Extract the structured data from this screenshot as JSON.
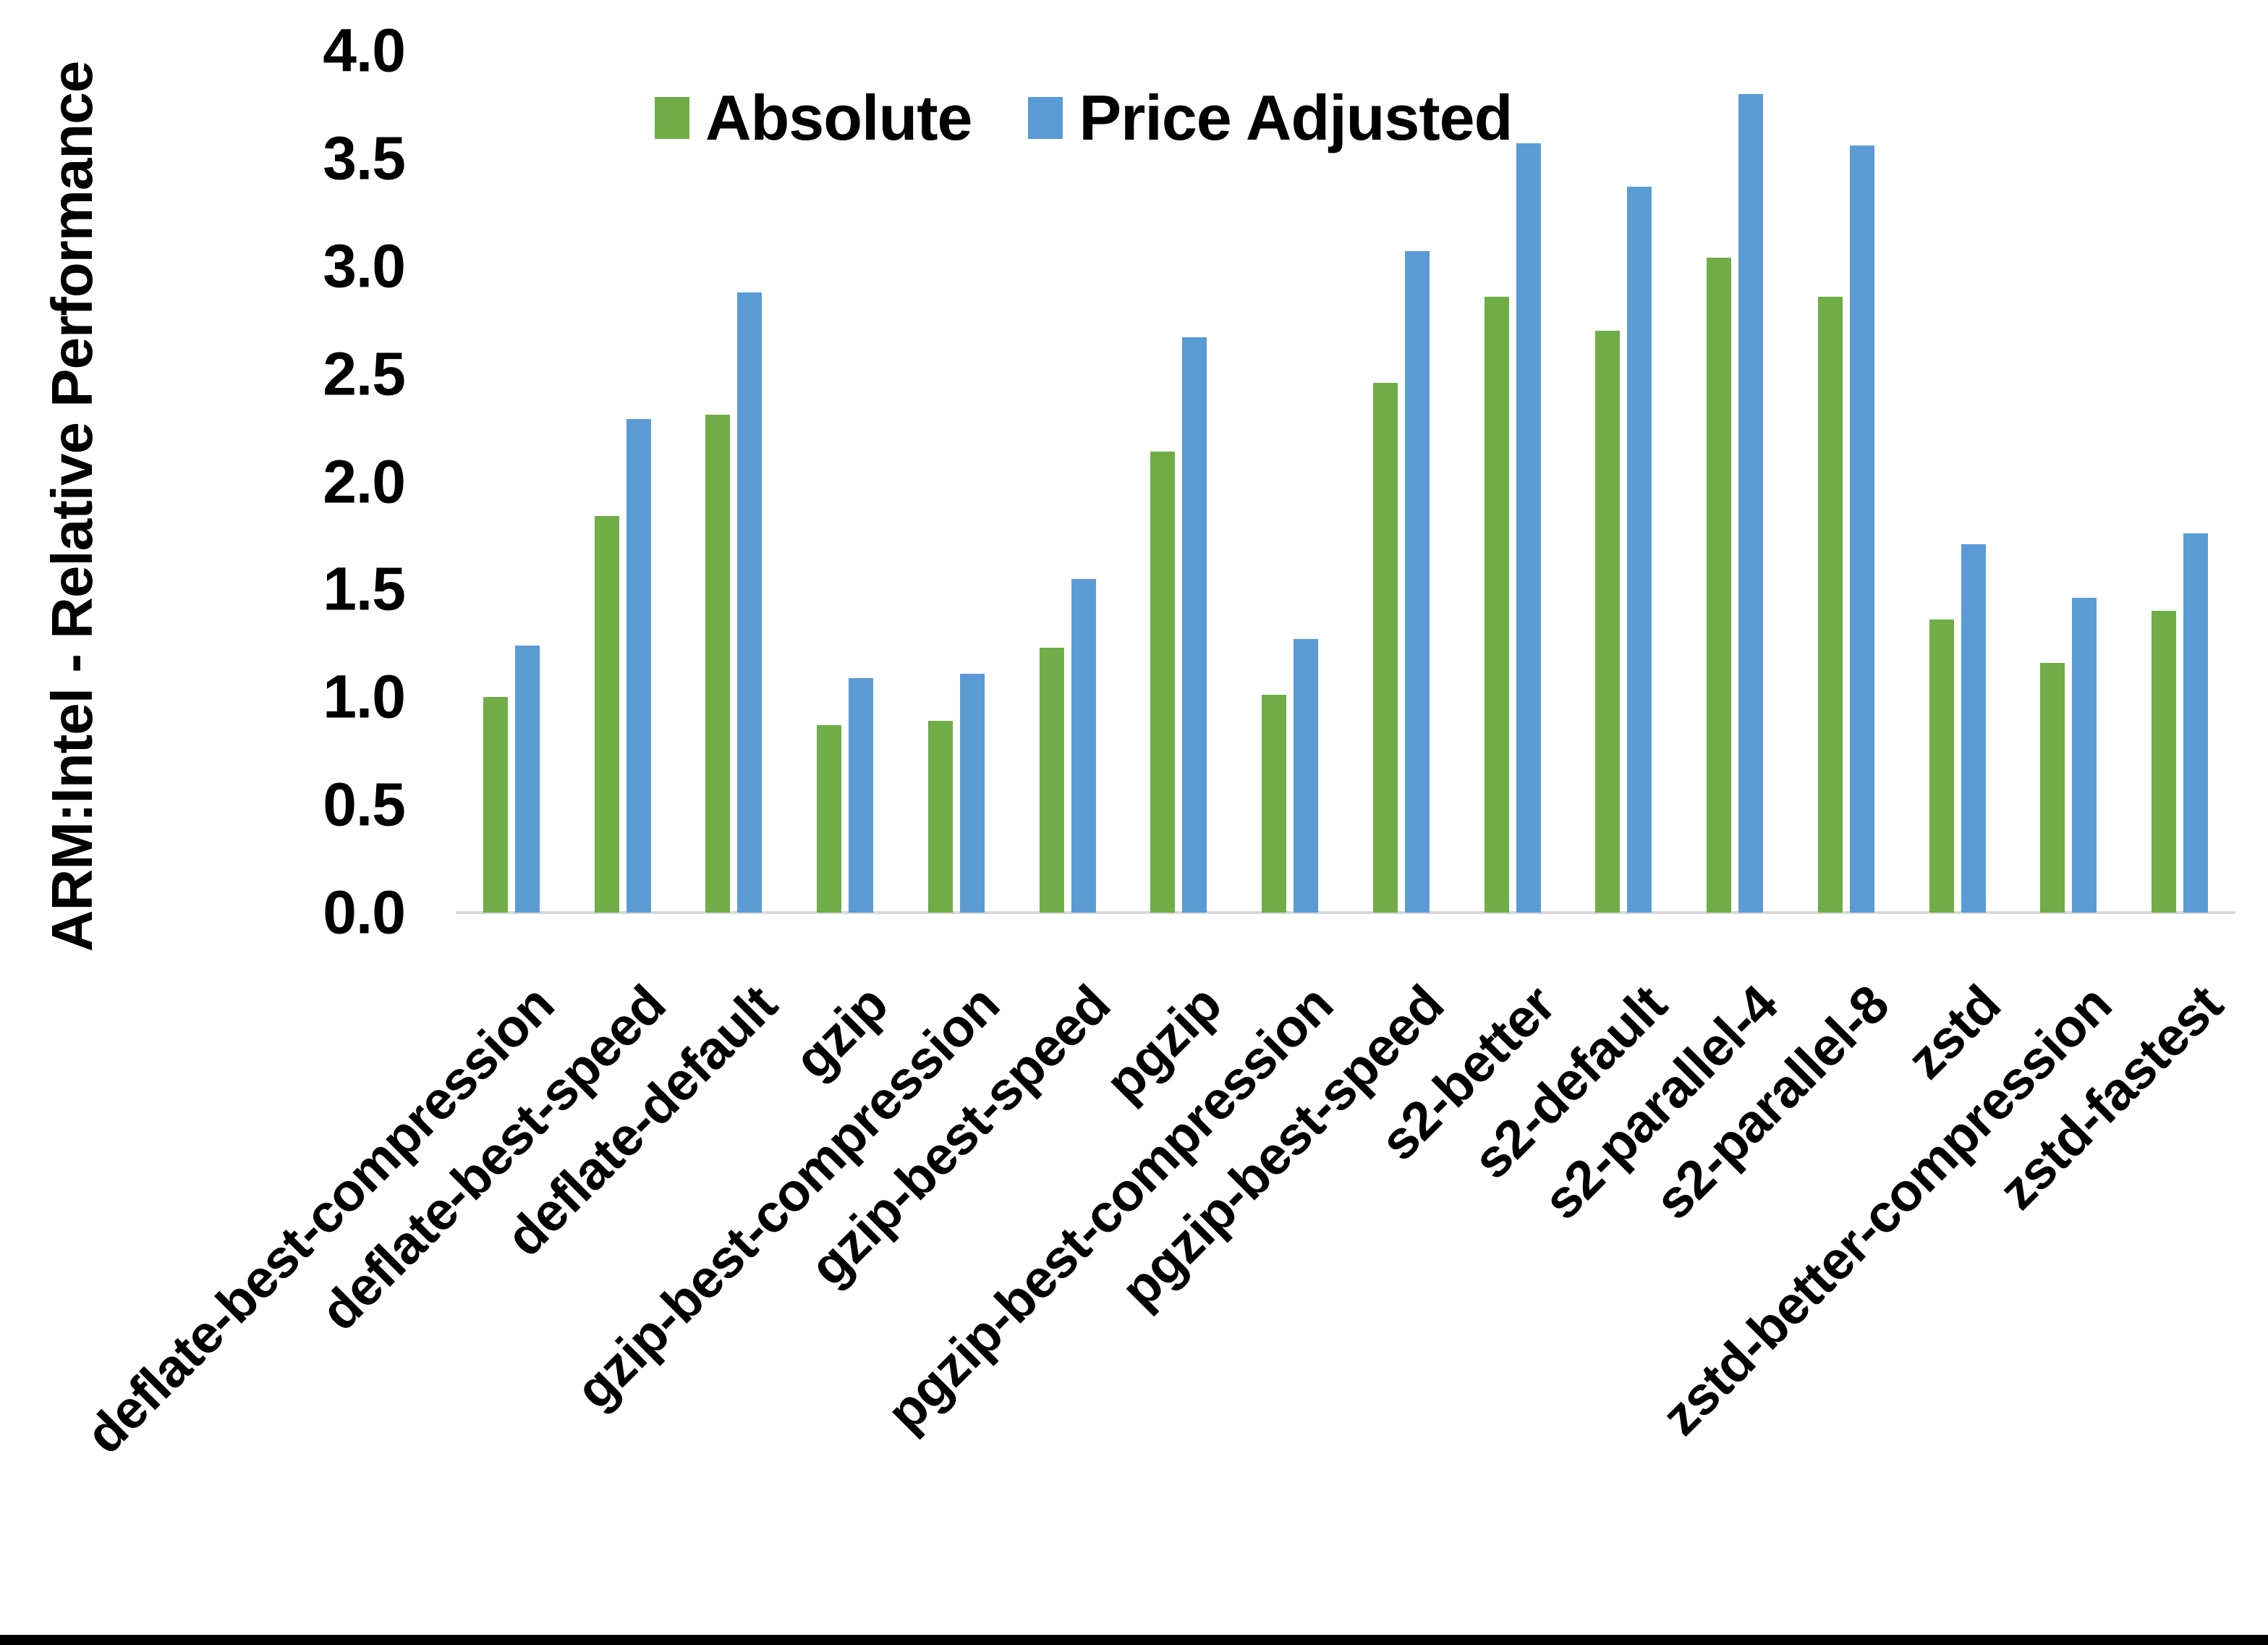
{
  "chart_data": {
    "type": "bar",
    "title": "",
    "xlabel": "",
    "ylabel": "ARM:Intel - Relative Performance",
    "ylim": [
      0.0,
      4.0
    ],
    "ytick_step": 0.5,
    "yticks": [
      "0.0",
      "0.5",
      "1.0",
      "1.5",
      "2.0",
      "2.5",
      "3.0",
      "3.5",
      "4.0"
    ],
    "grid": false,
    "legend_position": "top-center",
    "categories": [
      "deflate-best-compression",
      "deflate-best-speed",
      "deflate-default",
      "gzip",
      "gzip-best-compression",
      "gzip-best-speed",
      "pgzip",
      "pgzip-best-compression",
      "pgzip-best-speed",
      "s2-better",
      "s2-default",
      "s2-parallel-4",
      "s2-parallel-8",
      "zstd",
      "zstd-better-compression",
      "zstd-fastest"
    ],
    "series": [
      {
        "name": "Absolute",
        "color": "#70AD47",
        "values": [
          1.0,
          1.84,
          2.31,
          0.87,
          0.89,
          1.23,
          2.14,
          1.01,
          2.46,
          2.86,
          2.7,
          3.04,
          2.86,
          1.36,
          1.16,
          1.4
        ]
      },
      {
        "name": "Price Adjusted",
        "color": "#5B9BD5",
        "values": [
          1.24,
          2.29,
          2.88,
          1.09,
          1.11,
          1.55,
          2.67,
          1.27,
          3.07,
          3.57,
          3.37,
          3.8,
          3.56,
          1.71,
          1.46,
          1.76
        ]
      }
    ]
  },
  "colors": {
    "background": "#FFFFFF",
    "axis_line": "#D9D9D9",
    "text": "#000000",
    "bottom_bar": "#000000"
  }
}
